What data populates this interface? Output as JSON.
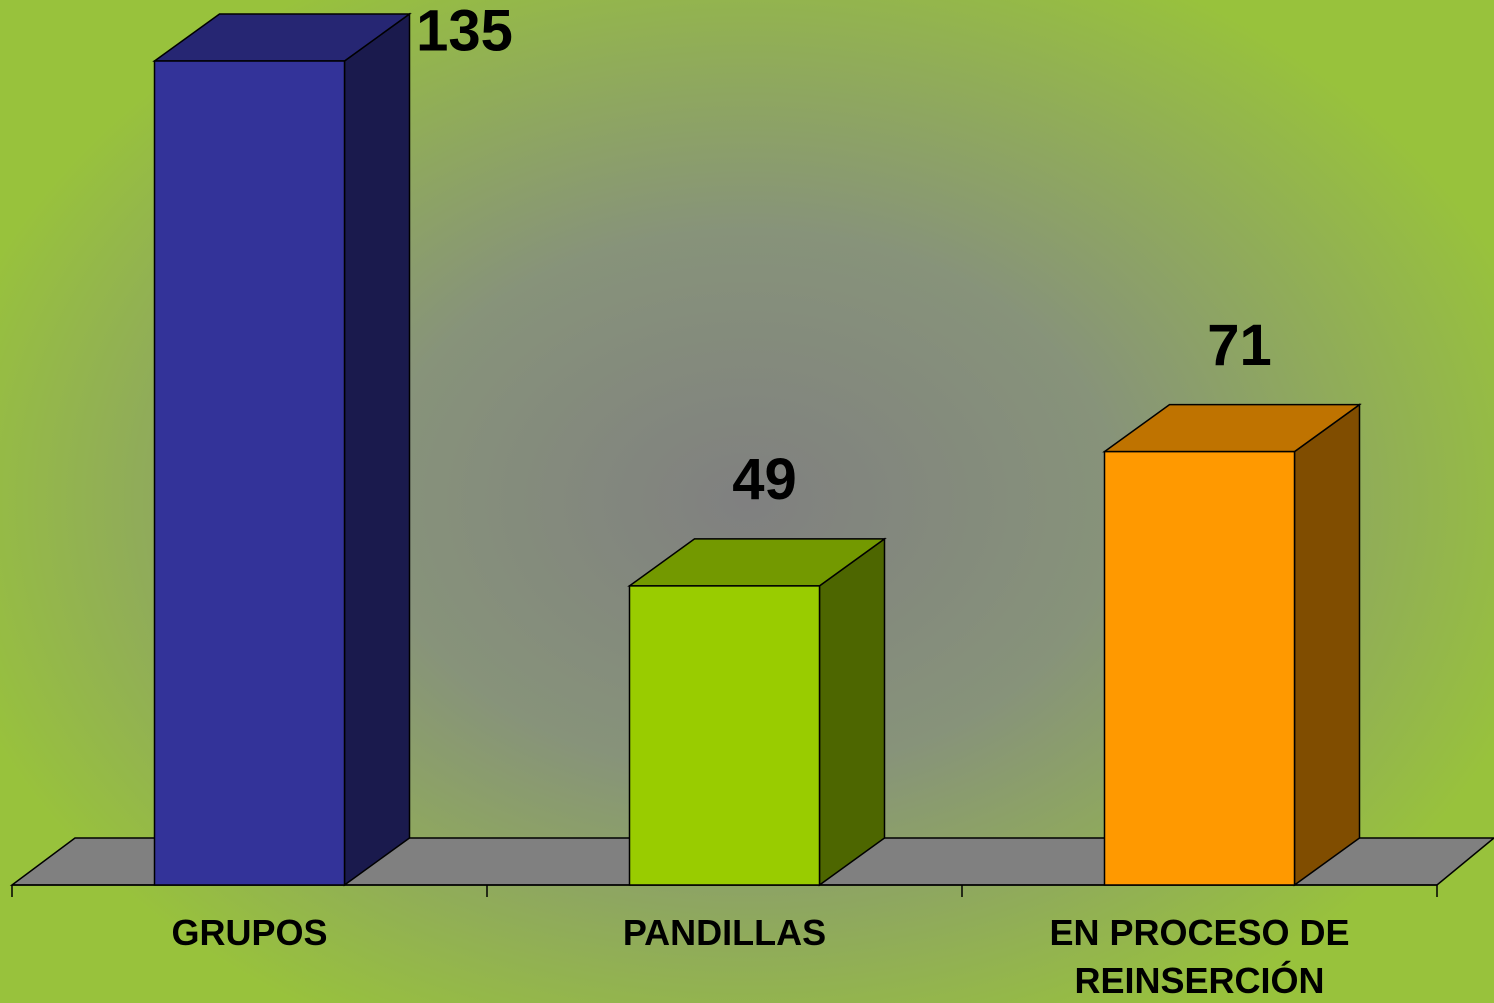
{
  "chart_data": {
    "type": "bar3d",
    "categories": [
      "GRUPOS",
      "PANDILLAS",
      "EN PROCESO DE REINSERCIÓN"
    ],
    "values": [
      135,
      49,
      71
    ],
    "colors": [
      "#333399",
      "#99cc00",
      "#ff9900"
    ]
  }
}
